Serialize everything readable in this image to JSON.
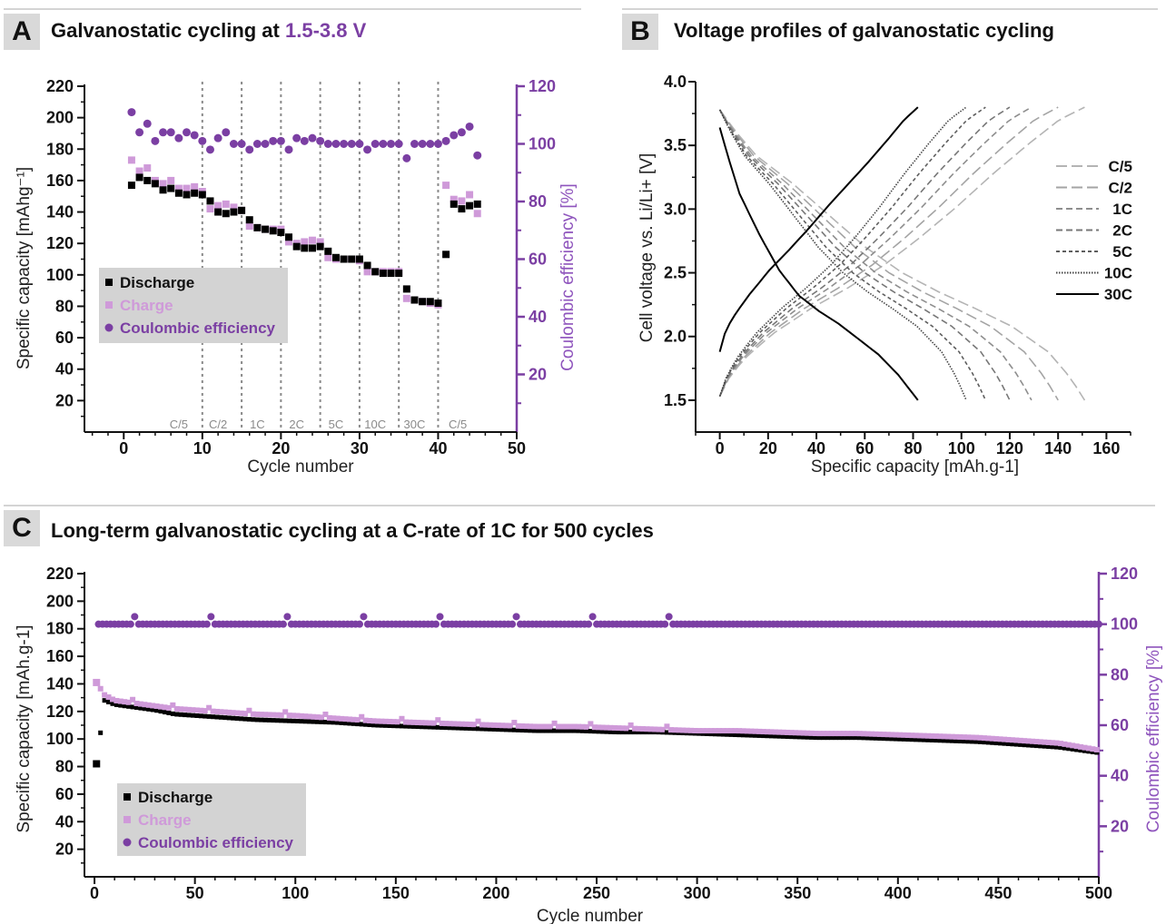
{
  "panels": {
    "A": {
      "letter": "A",
      "title": "Galvanostatic cycling at ",
      "title_accent": "1.5-3.8 V"
    },
    "B": {
      "letter": "B",
      "title": "Voltage profiles of galvanostatic cycling"
    },
    "C": {
      "letter": "C",
      "title": "Long-term galvanostatic cycling at a C-rate of 1C for 500 cycles"
    }
  },
  "colors": {
    "discharge": "#000000",
    "charge": "#cf9ad9",
    "coulombic": "#7b3fa3",
    "axis_right": "#7b3fa3",
    "legend_box": "#d3d3d3"
  },
  "chart_data": [
    {
      "id": "A",
      "type": "scatter",
      "xlabel": "Cycle number",
      "ylabel": "Specific capacity [mAhg⁻¹]",
      "ylabel_right": "Coulombic efficiency [%]",
      "xlim": [
        -5,
        50
      ],
      "ylim": [
        0,
        220
      ],
      "ylim_right": [
        0,
        120
      ],
      "x_ticks": [
        0,
        10,
        20,
        30,
        40,
        50
      ],
      "y_ticks": [
        20,
        40,
        60,
        80,
        100,
        120,
        140,
        160,
        180,
        200,
        220
      ],
      "y_ticks_right": [
        20,
        40,
        60,
        80,
        100,
        120
      ],
      "rate_boundaries": [
        10,
        15,
        20,
        25,
        30,
        35,
        40
      ],
      "rate_labels": [
        {
          "label": "C/5",
          "x": 7
        },
        {
          "label": "C/2",
          "x": 12
        },
        {
          "label": "1C",
          "x": 17
        },
        {
          "label": "2C",
          "x": 22
        },
        {
          "label": "5C",
          "x": 27
        },
        {
          "label": "10C",
          "x": 32
        },
        {
          "label": "30C",
          "x": 37
        },
        {
          "label": "C/5",
          "x": 42.5
        }
      ],
      "legend": [
        "Discharge",
        "Charge",
        "Coulombic efficiency"
      ],
      "legend_position": "lower-left",
      "series": [
        {
          "name": "Discharge",
          "axis": "left",
          "x": [
            1,
            2,
            3,
            4,
            5,
            6,
            7,
            8,
            9,
            10,
            11,
            12,
            13,
            14,
            15,
            16,
            17,
            18,
            19,
            20,
            21,
            22,
            23,
            24,
            25,
            26,
            27,
            28,
            29,
            30,
            31,
            32,
            33,
            34,
            35,
            36,
            37,
            38,
            39,
            40,
            41,
            42,
            43,
            44,
            45
          ],
          "values": [
            157,
            162,
            160,
            158,
            154,
            155,
            152,
            151,
            152,
            151,
            147,
            140,
            139,
            140,
            141,
            135,
            130,
            129,
            128,
            127,
            124,
            118,
            117,
            117,
            118,
            115,
            111,
            110,
            110,
            110,
            106,
            102,
            101,
            101,
            101,
            91,
            84,
            83,
            83,
            82,
            113,
            145,
            142,
            144,
            145
          ]
        },
        {
          "name": "Charge",
          "axis": "left",
          "x": [
            1,
            2,
            3,
            4,
            5,
            6,
            7,
            8,
            9,
            10,
            11,
            12,
            13,
            14,
            15,
            16,
            17,
            18,
            19,
            20,
            21,
            22,
            23,
            24,
            25,
            26,
            27,
            28,
            29,
            30,
            31,
            32,
            33,
            34,
            35,
            36,
            37,
            38,
            39,
            40,
            41,
            42,
            43,
            44,
            45
          ],
          "values": [
            173,
            166,
            168,
            160,
            158,
            160,
            155,
            155,
            156,
            153,
            142,
            144,
            145,
            143,
            141,
            131,
            130,
            129,
            129,
            129,
            121,
            120,
            121,
            122,
            121,
            111,
            110,
            110,
            110,
            109,
            102,
            102,
            102,
            102,
            102,
            85,
            84,
            83,
            82,
            81,
            157,
            148,
            147,
            151,
            139
          ]
        },
        {
          "name": "Coulombic efficiency",
          "axis": "right",
          "x": [
            1,
            2,
            3,
            4,
            5,
            6,
            7,
            8,
            9,
            10,
            11,
            12,
            13,
            14,
            15,
            16,
            17,
            18,
            19,
            20,
            21,
            22,
            23,
            24,
            25,
            26,
            27,
            28,
            29,
            30,
            31,
            32,
            33,
            34,
            35,
            36,
            37,
            38,
            39,
            40,
            41,
            42,
            43,
            44,
            45
          ],
          "values": [
            111,
            104,
            107,
            101,
            104,
            104,
            102,
            104,
            103,
            101,
            98,
            102,
            104,
            100,
            100,
            98,
            100,
            100,
            101,
            101,
            98,
            102,
            101,
            102,
            101,
            100,
            100,
            100,
            100,
            100,
            98,
            100,
            100,
            100,
            100,
            95,
            100,
            100,
            100,
            100,
            101,
            103,
            104,
            106,
            96
          ]
        }
      ]
    },
    {
      "id": "B",
      "type": "line",
      "xlabel": "Specific capacity [mAh.g-1]",
      "ylabel": "Cell voltage vs. Li/Li+ [V]",
      "xlim": [
        -10,
        170
      ],
      "ylim": [
        1.25,
        4.0
      ],
      "x_ticks": [
        0,
        20,
        40,
        60,
        80,
        100,
        120,
        140,
        160
      ],
      "y_ticks": [
        1.5,
        2.0,
        2.5,
        3.0,
        3.5,
        4.0
      ],
      "legend": [
        "C/5",
        "C/2",
        "1C",
        "2C",
        "5C",
        "10C",
        "30C"
      ],
      "legend_position": "right",
      "series": [
        {
          "name": "C/5",
          "charge_capacity": 151,
          "discharge_capacity": 151,
          "style": "long-dash",
          "color": "#b4b4b4"
        },
        {
          "name": "C/2",
          "charge_capacity": 140,
          "discharge_capacity": 140,
          "style": "long-dash",
          "color": "#a4a4a4"
        },
        {
          "name": "1C",
          "charge_capacity": 129,
          "discharge_capacity": 129,
          "style": "dash",
          "color": "#8e8e8e"
        },
        {
          "name": "2C",
          "charge_capacity": 120,
          "discharge_capacity": 120,
          "style": "dash",
          "color": "#777777"
        },
        {
          "name": "5C",
          "charge_capacity": 110,
          "discharge_capacity": 110,
          "style": "short-dash",
          "color": "#5e5e5e"
        },
        {
          "name": "10C",
          "charge_capacity": 102,
          "discharge_capacity": 102,
          "style": "dot",
          "color": "#444444"
        },
        {
          "name": "30C",
          "charge_capacity": 82,
          "discharge_capacity": 82,
          "style": "solid",
          "color": "#000000"
        }
      ]
    },
    {
      "id": "C",
      "type": "scatter",
      "xlabel": "Cycle number",
      "ylabel": "Specific capacity [mAh.g-1]",
      "ylabel_right": "Coulombic efficiency [%]",
      "xlim": [
        -5,
        500
      ],
      "ylim": [
        0,
        220
      ],
      "ylim_right": [
        0,
        120
      ],
      "x_ticks": [
        0,
        50,
        100,
        150,
        200,
        250,
        300,
        350,
        400,
        450,
        500
      ],
      "y_ticks": [
        20,
        40,
        60,
        80,
        100,
        120,
        140,
        160,
        180,
        200,
        220
      ],
      "y_ticks_right": [
        20,
        40,
        60,
        80,
        100,
        120
      ],
      "legend": [
        "Discharge",
        "Charge",
        "Coulombic efficiency"
      ],
      "legend_position": "lower-left",
      "series": [
        {
          "name": "Discharge",
          "axis": "left",
          "x": [
            1,
            5,
            10,
            20,
            30,
            40,
            50,
            60,
            80,
            100,
            120,
            140,
            160,
            180,
            200,
            220,
            240,
            260,
            280,
            300,
            320,
            340,
            360,
            380,
            400,
            420,
            440,
            460,
            480,
            500
          ],
          "values": [
            82,
            129,
            126,
            124,
            122,
            119,
            118,
            117,
            115,
            114,
            113,
            111,
            110,
            109,
            108,
            107,
            107,
            106,
            106,
            105,
            104,
            103,
            102,
            102,
            101,
            100,
            99,
            97,
            95,
            91
          ]
        },
        {
          "name": "Charge",
          "axis": "left",
          "x": [
            1,
            5,
            10,
            20,
            30,
            40,
            50,
            60,
            80,
            100,
            120,
            140,
            160,
            180,
            200,
            220,
            240,
            260,
            280,
            300,
            320,
            340,
            360,
            380,
            400,
            420,
            440,
            460,
            480,
            500
          ],
          "values": [
            141,
            132,
            128,
            126,
            124,
            122,
            121,
            120,
            118,
            117,
            115,
            113,
            112,
            111,
            110,
            109,
            109,
            108,
            107,
            106,
            106,
            105,
            104,
            104,
            103,
            102,
            101,
            99,
            97,
            92
          ]
        },
        {
          "name": "Coulombic efficiency",
          "axis": "right",
          "x": [
            1,
            50,
            100,
            150,
            200,
            250,
            300,
            350,
            400,
            450,
            500
          ],
          "values": [
            100,
            100,
            100,
            100,
            100,
            100,
            100,
            100,
            100,
            100,
            100
          ]
        }
      ]
    }
  ]
}
